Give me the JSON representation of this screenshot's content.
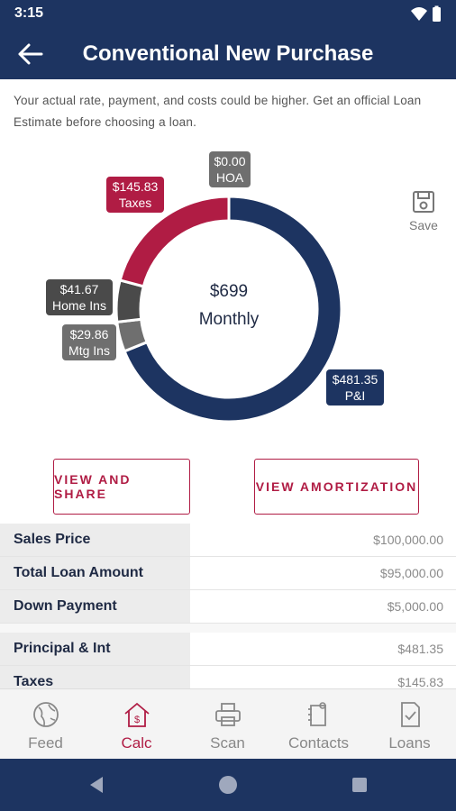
{
  "status": {
    "time": "3:15"
  },
  "header": {
    "title": "Conventional New Purchase"
  },
  "disclaimer": "Your actual rate, payment, and costs could be higher. Get an official Loan Estimate before choosing a loan.",
  "chart_data": {
    "type": "pie",
    "center_amount": "$699",
    "center_label": "Monthly",
    "slices": [
      {
        "name": "P&I",
        "value": 481.35,
        "display": "$481.35",
        "color": "#1d3461"
      },
      {
        "name": "Mtg Ins",
        "value": 29.86,
        "display": "$29.86",
        "color": "#6f6f6f"
      },
      {
        "name": "Home Ins",
        "value": 41.67,
        "display": "$41.67",
        "color": "#4a4a4a"
      },
      {
        "name": "Taxes",
        "value": 145.83,
        "display": "$145.83",
        "color": "#b01c44"
      },
      {
        "name": "HOA",
        "value": 0.0,
        "display": "$0.00",
        "color": "#777777"
      }
    ]
  },
  "save_label": "Save",
  "buttons": {
    "share": "VIEW AND SHARE",
    "amortization": "VIEW AMORTIZATION"
  },
  "table": {
    "rows1": [
      {
        "label": "Sales Price",
        "value": "$100,000.00"
      },
      {
        "label": "Total Loan Amount",
        "value": "$95,000.00"
      },
      {
        "label": "Down Payment",
        "value": "$5,000.00"
      }
    ],
    "rows2": [
      {
        "label": "Principal & Int",
        "value": "$481.35"
      },
      {
        "label": "Taxes",
        "value": "$145.83"
      }
    ]
  },
  "nav": [
    {
      "label": "Feed",
      "icon": "globe-icon"
    },
    {
      "label": "Calc",
      "icon": "home-calculator-icon"
    },
    {
      "label": "Scan",
      "icon": "printer-icon"
    },
    {
      "label": "Contacts",
      "icon": "contacts-icon"
    },
    {
      "label": "Loans",
      "icon": "document-check-icon"
    }
  ]
}
